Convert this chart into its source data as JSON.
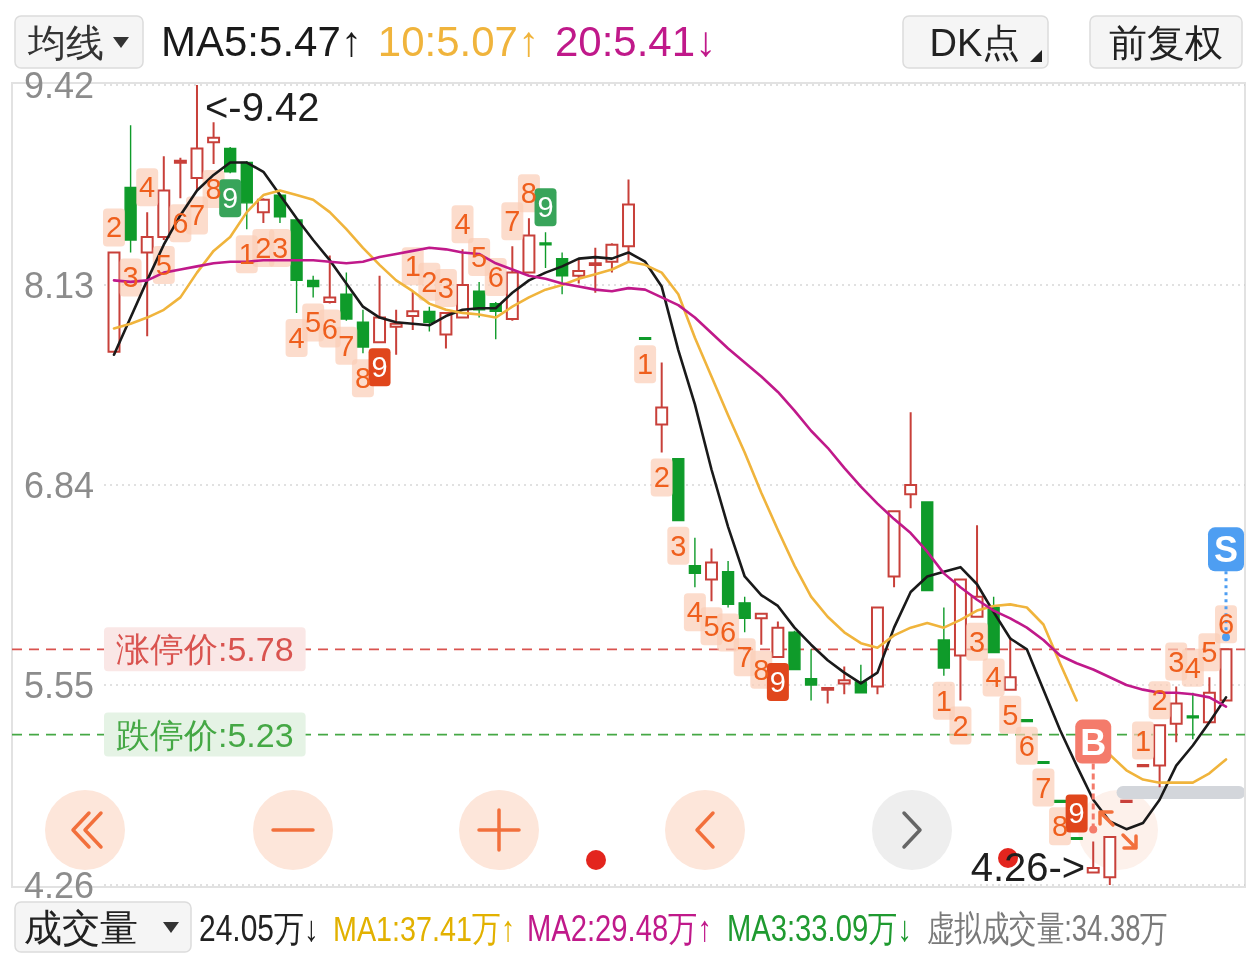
{
  "chart_data": {
    "type": "candlestick",
    "categories": [
      null,
      null,
      null,
      null,
      null,
      null,
      null,
      null,
      null,
      null,
      null,
      null,
      null,
      null,
      null,
      null,
      null,
      null,
      null,
      null,
      null,
      null,
      null,
      null,
      null,
      null,
      null,
      null,
      null,
      null,
      null,
      null,
      null,
      null,
      null,
      null,
      null,
      null,
      null,
      null,
      null,
      null,
      null,
      null,
      null,
      null,
      null,
      null,
      null,
      null,
      null,
      null,
      null,
      null,
      null,
      null,
      null,
      null,
      null,
      null,
      null,
      null,
      null,
      null,
      null,
      null,
      null,
      null
    ],
    "ohlc": [
      [
        7.7,
        8.34,
        7.7,
        8.34
      ],
      [
        8.76,
        9.16,
        8.34,
        8.42
      ],
      [
        8.34,
        8.6,
        7.8,
        8.44
      ],
      [
        8.44,
        8.96,
        8.42,
        8.74
      ],
      [
        8.92,
        8.95,
        8.69,
        8.93
      ],
      [
        8.82,
        9.42,
        8.74,
        9.01
      ],
      [
        9.05,
        9.18,
        8.91,
        9.08
      ],
      [
        9.01,
        9.02,
        8.85,
        8.86
      ],
      [
        8.92,
        8.93,
        8.49,
        8.66
      ],
      [
        8.6,
        8.69,
        8.53,
        8.68
      ],
      [
        8.71,
        8.72,
        8.53,
        8.57
      ],
      [
        8.55,
        8.56,
        7.95,
        8.16
      ],
      [
        8.16,
        8.19,
        8.05,
        8.12
      ],
      [
        8.02,
        8.32,
        8.01,
        8.05
      ],
      [
        8.07,
        8.21,
        7.9,
        7.91
      ],
      [
        7.89,
        7.97,
        7.69,
        7.73
      ],
      [
        7.76,
        8.19,
        7.76,
        7.92
      ],
      [
        7.86,
        7.97,
        7.68,
        7.88
      ],
      [
        7.93,
        8.09,
        7.84,
        7.96
      ],
      [
        7.96,
        7.99,
        7.83,
        7.89
      ],
      [
        7.81,
        7.95,
        7.72,
        7.95
      ],
      [
        7.92,
        8.36,
        7.92,
        8.13
      ],
      [
        8.09,
        8.15,
        7.92,
        7.97
      ],
      [
        8.01,
        8.02,
        7.78,
        7.96
      ],
      [
        7.91,
        8.38,
        7.9,
        8.21
      ],
      [
        8.21,
        8.56,
        8.21,
        8.45
      ],
      [
        8.4,
        8.47,
        8.24,
        8.39
      ],
      [
        8.3,
        8.34,
        8.07,
        8.19
      ],
      [
        8.19,
        8.3,
        8.14,
        8.22
      ],
      [
        8.26,
        8.37,
        8.08,
        8.27
      ],
      [
        8.28,
        8.4,
        8.21,
        8.39
      ],
      [
        8.38,
        8.81,
        8.28,
        8.65
      ],
      [
        7.79,
        7.79,
        7.78,
        7.78
      ],
      [
        7.23,
        7.63,
        7.05,
        7.34
      ],
      [
        7.01,
        7.01,
        6.61,
        6.61
      ],
      [
        6.32,
        6.5,
        6.18,
        6.27
      ],
      [
        6.23,
        6.43,
        6.09,
        6.34
      ],
      [
        6.28,
        6.35,
        6.05,
        6.07
      ],
      [
        6.08,
        6.12,
        5.89,
        5.98
      ],
      [
        5.98,
        6.01,
        5.81,
        6.01
      ],
      [
        5.73,
        5.96,
        5.73,
        5.92
      ],
      [
        5.89,
        5.9,
        5.65,
        5.65
      ],
      [
        5.59,
        5.78,
        5.45,
        5.55
      ],
      [
        5.52,
        5.53,
        5.43,
        5.53
      ],
      [
        5.56,
        5.67,
        5.49,
        5.58
      ],
      [
        5.57,
        5.68,
        5.5,
        5.5
      ],
      [
        5.54,
        6.05,
        5.49,
        6.05
      ],
      [
        6.25,
        6.67,
        6.18,
        6.67
      ],
      [
        6.78,
        7.31,
        6.69,
        6.84
      ],
      [
        6.73,
        6.73,
        6.16,
        6.16
      ],
      [
        5.84,
        6.05,
        5.61,
        5.66
      ],
      [
        5.74,
        6.23,
        5.45,
        6.23
      ],
      [
        5.99,
        6.58,
        5.99,
        6.12
      ],
      [
        6.05,
        6.12,
        5.76,
        5.76
      ],
      [
        5.52,
        5.86,
        5.52,
        5.6
      ],
      [
        5.32,
        5.32,
        5.32,
        5.32
      ],
      [
        5.05,
        5.05,
        5.05,
        5.05
      ],
      [
        4.8,
        4.8,
        4.8,
        4.8
      ],
      [
        4.56,
        4.56,
        4.56,
        4.56
      ],
      [
        4.34,
        4.54,
        4.34,
        4.37
      ],
      [
        4.31,
        4.57,
        4.26,
        4.57
      ],
      [
        4.8,
        4.8,
        4.8,
        4.8
      ],
      [
        5.03,
        5.03,
        5.03,
        5.03
      ],
      [
        5.03,
        5.29,
        4.89,
        5.29
      ],
      [
        5.3,
        5.54,
        5.18,
        5.43
      ],
      [
        5.35,
        5.5,
        5.2,
        5.34
      ],
      [
        5.31,
        5.6,
        5.31,
        5.5
      ],
      [
        5.45,
        5.78,
        5.45,
        5.78
      ]
    ],
    "colors": [
      "#c8403a",
      "#0f9b2a",
      "#c8403a",
      "#c8403a",
      "#c8403a",
      "#c8403a",
      "#c8403a",
      "#0f9b2a",
      "#0f9b2a",
      "#c8403a",
      "#0f9b2a",
      "#0f9b2a",
      "#0f9b2a",
      "#c8403a",
      "#0f9b2a",
      "#0f9b2a",
      "#c8403a",
      "#c8403a",
      "#c8403a",
      "#0f9b2a",
      "#c8403a",
      "#c8403a",
      "#0f9b2a",
      "#0f9b2a",
      "#c8403a",
      "#c8403a",
      "#0f9b2a",
      "#0f9b2a",
      "#c8403a",
      "#c8403a",
      "#c8403a",
      "#c8403a",
      "#0f9b2a",
      "#c8403a",
      "#0f9b2a",
      "#0f9b2a",
      "#c8403a",
      "#0f9b2a",
      "#0f9b2a",
      "#c8403a",
      "#c8403a",
      "#0f9b2a",
      "#0f9b2a",
      "#c8403a",
      "#c8403a",
      "#0f9b2a",
      "#c8403a",
      "#c8403a",
      "#c8403a",
      "#0f9b2a",
      "#0f9b2a",
      "#c8403a",
      "#c8403a",
      "#0f9b2a",
      "#c8403a",
      "#0f9b2a",
      "#0f9b2a",
      "#0f9b2a",
      "#0f9b2a",
      "#c8403a",
      "#c8403a",
      "#c8403a",
      "#c8403a",
      "#c8403a",
      "#c8403a",
      "#0f9b2a",
      "#c8403a",
      "#c8403a"
    ],
    "value_labels": [
      "2",
      "3",
      "4",
      "5",
      "6",
      "7",
      "8",
      "9",
      "1",
      "2",
      "3",
      "4",
      "5",
      "6",
      "7",
      "8",
      "9",
      null,
      "1",
      "2",
      "3",
      "4",
      "5",
      "6",
      "7",
      "8",
      "9",
      null,
      null,
      null,
      null,
      null,
      "1",
      "2",
      "3",
      "4",
      "5",
      "6",
      "7",
      "8",
      "9",
      null,
      null,
      null,
      null,
      null,
      null,
      null,
      null,
      null,
      "1",
      "2",
      "3",
      "4",
      "5",
      "6",
      "7",
      "8",
      "9",
      null,
      null,
      null,
      "1",
      "2",
      "3",
      "4",
      "5",
      "6"
    ],
    "series": [
      {
        "name": "MA5:5.47↑",
        "type": "line",
        "color": "#1a1a1a",
        "values": [
          7.68,
          7.92,
          8.16,
          8.39,
          8.58,
          8.74,
          8.84,
          8.92,
          8.92,
          8.86,
          8.71,
          8.56,
          8.42,
          8.29,
          8.14,
          7.99,
          7.92,
          7.89,
          7.88,
          7.87,
          7.93,
          7.97,
          7.98,
          7.98,
          8.08,
          8.16,
          8.21,
          8.25,
          8.3,
          8.31,
          8.3,
          8.34,
          8.28,
          8.12,
          7.71,
          7.36,
          6.94,
          6.57,
          6.25,
          6.13,
          6.06,
          5.92,
          5.81,
          5.71,
          5.63,
          5.56,
          5.63,
          5.92,
          6.15,
          6.25,
          6.28,
          6.31,
          6.2,
          6.02,
          5.85,
          5.78,
          5.52,
          5.26,
          5.03,
          4.81,
          4.67,
          4.62,
          4.66,
          4.81,
          5.03,
          5.16,
          5.31,
          5.47
        ]
      },
      {
        "name": "10:5.07↑",
        "type": "line",
        "color": "#f0b43c",
        "values": [
          7.85,
          7.88,
          7.92,
          7.97,
          8.05,
          8.21,
          8.35,
          8.44,
          8.6,
          8.71,
          8.74,
          8.71,
          8.68,
          8.6,
          8.49,
          8.37,
          8.26,
          8.16,
          8.09,
          8.01,
          7.97,
          7.95,
          7.94,
          7.92,
          7.99,
          8.05,
          8.1,
          8.13,
          8.17,
          8.2,
          8.23,
          8.28,
          8.26,
          8.21,
          8.07,
          7.79,
          7.54,
          7.29,
          7.05,
          6.79,
          6.55,
          6.32,
          6.12,
          5.99,
          5.89,
          5.82,
          5.79,
          5.87,
          5.92,
          5.95,
          5.92,
          5.97,
          6.03,
          6.06,
          6.07,
          6.05,
          5.94,
          5.69,
          5.45,
          null,
          5.1,
          5.0,
          4.94,
          4.92,
          4.92,
          4.92,
          4.98,
          5.07
        ]
      },
      {
        "name": "20:5.41↓",
        "type": "line",
        "color": "#c0198a",
        "values": [
          8.16,
          8.15,
          8.16,
          8.21,
          8.23,
          8.25,
          8.27,
          8.28,
          8.28,
          8.29,
          8.29,
          8.29,
          8.29,
          8.28,
          8.27,
          8.28,
          8.31,
          8.33,
          8.35,
          8.37,
          8.36,
          8.34,
          8.33,
          8.27,
          8.23,
          8.19,
          8.17,
          8.14,
          8.12,
          8.1,
          8.09,
          8.11,
          8.1,
          8.05,
          8.0,
          7.92,
          7.82,
          7.72,
          7.63,
          7.54,
          7.44,
          7.32,
          7.19,
          7.08,
          6.95,
          6.83,
          6.72,
          6.62,
          6.53,
          6.41,
          6.27,
          6.18,
          6.1,
          6.03,
          5.98,
          5.92,
          5.84,
          5.74,
          5.69,
          5.65,
          5.6,
          5.55,
          5.52,
          5.5,
          5.5,
          5.49,
          5.47,
          5.41
        ]
      }
    ],
    "ylim": [
      4.26,
      9.42
    ],
    "yticks": [
      4.26,
      5.55,
      6.84,
      8.13,
      9.42
    ],
    "grid": "y",
    "tick_labels": "y",
    "legend": "top",
    "legend_title": "均线",
    "ref_lines": [
      {
        "axis": "y",
        "value": 5.78,
        "label": "涨停价:5.78",
        "color": "#d9534f",
        "line_style": "dashed"
      },
      {
        "axis": "y",
        "value": 5.23,
        "label": "跌停价:5.23",
        "color": "#45a845",
        "line_style": "dashed"
      }
    ],
    "annotations": [
      "DK点",
      "前复权",
      "成交量",
      "24.05万↓",
      "MA1:37.41万↑",
      "MA2:29.48万↑",
      "MA3:33.09万↓",
      "虚拟成交量:34.38万",
      "<-9.42",
      "4.26->",
      {
        "text": "B",
        "y": 4.54
      },
      {
        "text": "S",
        "y": 5.78
      }
    ]
  }
}
